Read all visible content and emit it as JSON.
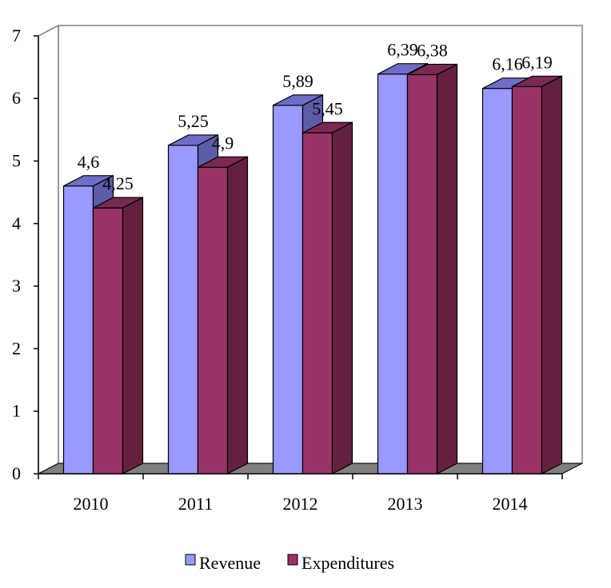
{
  "chart_data": {
    "type": "bar",
    "title": "",
    "xlabel": "",
    "ylabel": "",
    "categories": [
      "2010",
      "2011",
      "2012",
      "2013",
      "2014"
    ],
    "series": [
      {
        "name": "Revenue",
        "values": [
          4.6,
          5.25,
          5.89,
          6.39,
          6.16
        ],
        "labels": [
          "4,6",
          "5,25",
          "5,89",
          "6,39",
          "6,16"
        ],
        "color_front": "#9999FF",
        "color_top": "#6E6EC8",
        "color_side": "#5C5CA8"
      },
      {
        "name": "Expenditures",
        "values": [
          4.25,
          4.9,
          5.45,
          6.38,
          6.19
        ],
        "labels": [
          "4,25",
          "4,9",
          "5,45",
          "6,38",
          "6,19"
        ],
        "color_front": "#993366",
        "color_top": "#7A2952",
        "color_side": "#64213F"
      }
    ],
    "ylim": [
      0,
      7
    ],
    "yticks": [
      "0",
      "1",
      "2",
      "3",
      "4",
      "5",
      "6",
      "7"
    ],
    "legend_position": "bottom",
    "grid": false,
    "style": "3d-clustered-column",
    "floor_color": "#808080",
    "wall_color": "#ffffff",
    "axis_color": "#000000"
  }
}
